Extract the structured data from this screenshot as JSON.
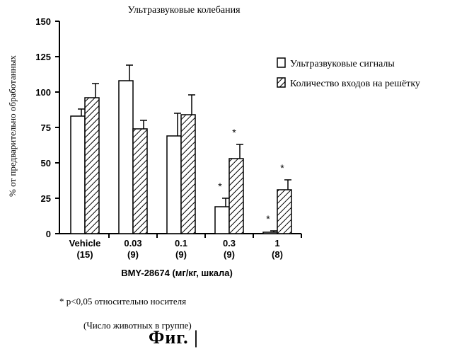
{
  "chart_data": {
    "type": "bar",
    "title": "Ультразвуковые колебания",
    "ylabel": "% от предварительно обработанных",
    "xlabel": "BMY-28674 (мг/кг, шкала)",
    "ylim": [
      0,
      150
    ],
    "yticks": [
      "0",
      "25",
      "50",
      "75",
      "100",
      "125",
      "150"
    ],
    "categories": [
      "Vehicle",
      "0.03",
      "0.1",
      "0.3",
      "1"
    ],
    "group_sizes": [
      "(15)",
      "(9)",
      "(9)",
      "(9)",
      "(8)"
    ],
    "series": [
      {
        "name": "Ультразвуковые сигналы",
        "fill": "open",
        "values": [
          83,
          108,
          69,
          19,
          1
        ],
        "errors": [
          5,
          11,
          16,
          6,
          1
        ],
        "significant": [
          false,
          false,
          false,
          true,
          true
        ]
      },
      {
        "name": "Количество входов на решётку",
        "fill": "hatched",
        "values": [
          96,
          74,
          84,
          53,
          31
        ],
        "errors": [
          10,
          6,
          14,
          10,
          7
        ],
        "significant": [
          false,
          false,
          false,
          true,
          true
        ]
      }
    ],
    "legend_position": "right",
    "grid": false
  },
  "footnotes": {
    "significance": "p<0,05 относительно носителя",
    "significance_marker": "*",
    "group_note": "(Число животных в группе)"
  },
  "figure_caption": "Фиг. |"
}
